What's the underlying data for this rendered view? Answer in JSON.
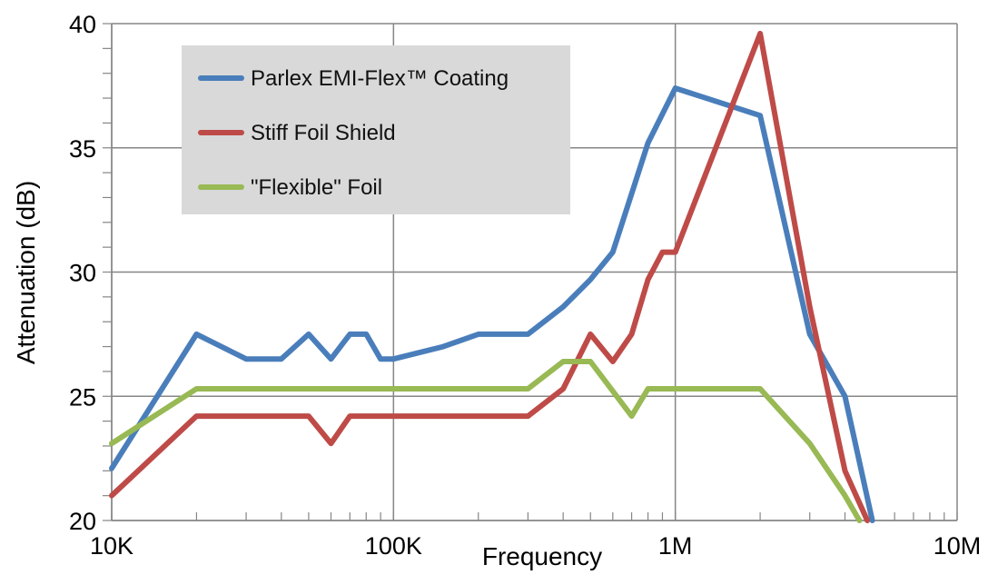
{
  "chart_data": {
    "type": "line",
    "xscale": "log",
    "xlim": [
      10000,
      10000000
    ],
    "ylim": [
      20,
      40
    ],
    "xlabel": "Frequency",
    "ylabel": "Attenuation (dB)",
    "xticks": [
      {
        "value": 10000,
        "label": "10K"
      },
      {
        "value": 100000,
        "label": "100K"
      },
      {
        "value": 1000000,
        "label": "1M"
      },
      {
        "value": 10000000,
        "label": "10M"
      }
    ],
    "yticks": [
      20,
      25,
      30,
      35,
      40
    ],
    "grid": true,
    "legend": "top-left",
    "series": [
      {
        "name": "Parlex EMI-Flex™ Coating",
        "color": "#4a7ebb",
        "points": [
          [
            10000,
            22.1
          ],
          [
            20000,
            27.5
          ],
          [
            30000,
            26.5
          ],
          [
            40000,
            26.5
          ],
          [
            50000,
            27.5
          ],
          [
            60000,
            26.5
          ],
          [
            70000,
            27.5
          ],
          [
            80000,
            27.5
          ],
          [
            90000,
            26.5
          ],
          [
            100000,
            26.5
          ],
          [
            150000,
            27.0
          ],
          [
            200000,
            27.5
          ],
          [
            300000,
            27.5
          ],
          [
            400000,
            28.6
          ],
          [
            500000,
            29.7
          ],
          [
            600000,
            30.8
          ],
          [
            800000,
            35.2
          ],
          [
            1000000,
            37.4
          ],
          [
            2000000,
            36.3
          ],
          [
            3000000,
            27.5
          ],
          [
            4000000,
            25.0
          ],
          [
            5000000,
            20.0
          ]
        ]
      },
      {
        "name": "Stiff Foil Shield",
        "color": "#be4b48",
        "points": [
          [
            10000,
            21.0
          ],
          [
            20000,
            24.2
          ],
          [
            30000,
            24.2
          ],
          [
            40000,
            24.2
          ],
          [
            50000,
            24.2
          ],
          [
            60000,
            23.1
          ],
          [
            70000,
            24.2
          ],
          [
            100000,
            24.2
          ],
          [
            200000,
            24.2
          ],
          [
            300000,
            24.2
          ],
          [
            400000,
            25.3
          ],
          [
            500000,
            27.5
          ],
          [
            600000,
            26.4
          ],
          [
            700000,
            27.5
          ],
          [
            800000,
            29.7
          ],
          [
            900000,
            30.8
          ],
          [
            1000000,
            30.8
          ],
          [
            2000000,
            39.6
          ],
          [
            3000000,
            28.6
          ],
          [
            4000000,
            22.0
          ],
          [
            4800000,
            20.0
          ]
        ]
      },
      {
        "name": "\"Flexible\" Foil",
        "color": "#98b954",
        "points": [
          [
            10000,
            23.1
          ],
          [
            20000,
            25.3
          ],
          [
            30000,
            25.3
          ],
          [
            50000,
            25.3
          ],
          [
            100000,
            25.3
          ],
          [
            200000,
            25.3
          ],
          [
            300000,
            25.3
          ],
          [
            400000,
            26.4
          ],
          [
            500000,
            26.4
          ],
          [
            700000,
            24.2
          ],
          [
            800000,
            25.3
          ],
          [
            1000000,
            25.3
          ],
          [
            2000000,
            25.3
          ],
          [
            3000000,
            23.1
          ],
          [
            4000000,
            21.0
          ],
          [
            4500000,
            20.0
          ]
        ]
      }
    ]
  }
}
